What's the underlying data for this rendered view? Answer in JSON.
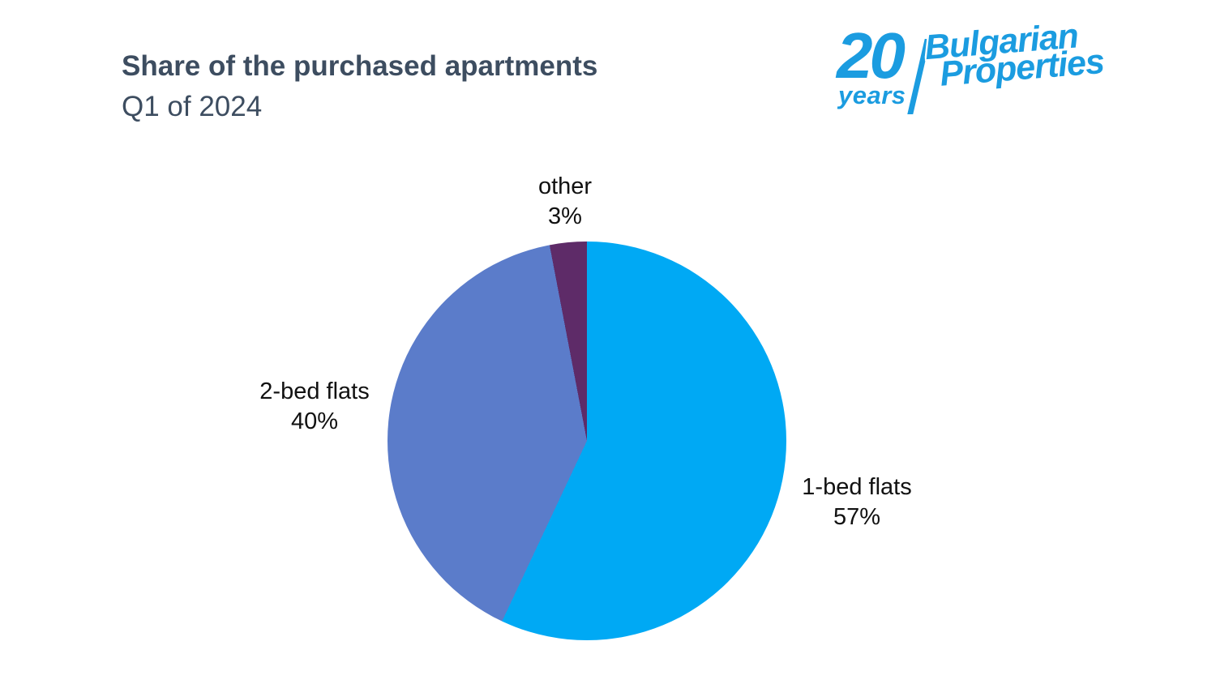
{
  "page": {
    "background_color": "#FFFFFF"
  },
  "header": {
    "title": "Share of the purchased apartments",
    "subtitle": "Q1 of 2024",
    "text_color": "#3D4D60"
  },
  "logo": {
    "number": "20",
    "years": "years",
    "line1": "Bulgarian",
    "line2": "Properties",
    "color": "#1B9CE0"
  },
  "chart_data": {
    "type": "pie",
    "title": "Share of the purchased apartments Q1 of 2024",
    "unit": "%",
    "direction": "clockwise",
    "start_angle_deg": 0,
    "legend": "none",
    "labels_outside": true,
    "label_color": "#111111",
    "slices": [
      {
        "label": "1-bed flats",
        "value": 57,
        "pct_text": "57%",
        "color": "#00A9F4"
      },
      {
        "label": "2-bed flats",
        "value": 40,
        "pct_text": "40%",
        "color": "#5B7CCA"
      },
      {
        "label": "other",
        "value": 3,
        "pct_text": "3%",
        "color": "#5E2B68"
      }
    ]
  }
}
